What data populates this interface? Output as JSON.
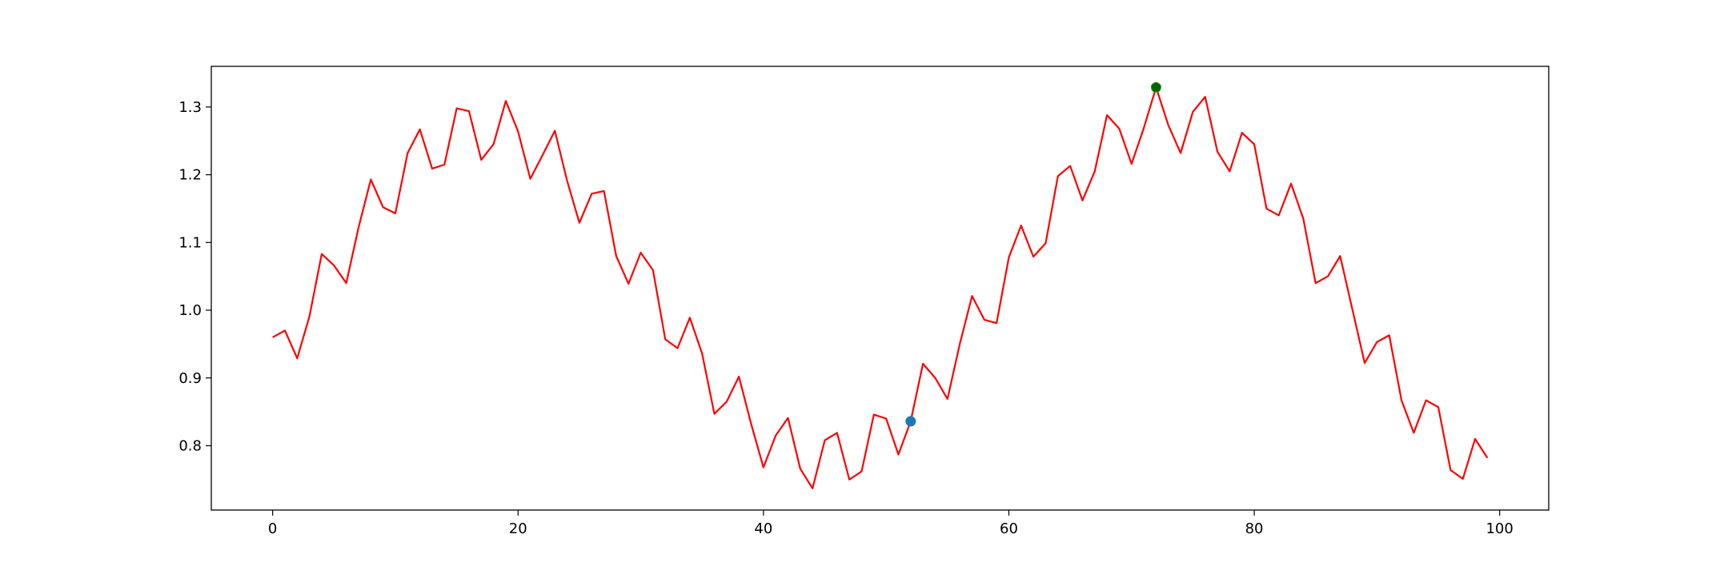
{
  "chart_data": {
    "type": "line",
    "title": "",
    "xlabel": "",
    "ylabel": "",
    "xlim": [
      -5,
      104
    ],
    "ylim": [
      0.705,
      1.36
    ],
    "grid": false,
    "legend": "none",
    "x_ticks": [
      0,
      20,
      40,
      60,
      80,
      100
    ],
    "x_tick_labels": [
      "0",
      "20",
      "40",
      "60",
      "80",
      "100"
    ],
    "y_ticks": [
      0.8,
      0.9,
      1.0,
      1.1,
      1.2,
      1.3
    ],
    "y_tick_labels": [
      "0.8",
      "0.9",
      "1.0",
      "1.1",
      "1.2",
      "1.3"
    ],
    "series": [
      {
        "color": "#ff0000",
        "x": [
          0,
          1,
          2,
          3,
          4,
          5,
          6,
          7,
          8,
          9,
          10,
          11,
          12,
          13,
          14,
          15,
          16,
          17,
          18,
          19,
          20,
          21,
          22,
          23,
          24,
          25,
          26,
          27,
          28,
          29,
          30,
          31,
          32,
          33,
          34,
          35,
          36,
          37,
          38,
          39,
          40,
          41,
          42,
          43,
          44,
          45,
          46,
          47,
          48,
          49,
          50,
          51,
          52,
          53,
          54,
          55,
          56,
          57,
          58,
          59,
          60,
          61,
          62,
          63,
          64,
          65,
          66,
          67,
          68,
          69,
          70,
          71,
          72,
          73,
          74,
          75,
          76,
          77,
          78,
          79,
          80,
          81,
          82,
          83,
          84,
          85,
          86,
          87,
          88,
          89,
          90,
          91,
          92,
          93,
          94,
          95,
          96,
          97,
          98,
          99
        ],
        "values": [
          0.96,
          0.97,
          0.929,
          0.991,
          1.083,
          1.066,
          1.04,
          1.122,
          1.193,
          1.152,
          1.143,
          1.232,
          1.267,
          1.209,
          1.215,
          1.298,
          1.294,
          1.222,
          1.245,
          1.309,
          1.264,
          1.194,
          1.229,
          1.265,
          1.191,
          1.129,
          1.172,
          1.176,
          1.08,
          1.039,
          1.085,
          1.059,
          0.957,
          0.944,
          0.989,
          0.936,
          0.847,
          0.865,
          0.902,
          0.832,
          0.768,
          0.815,
          0.841,
          0.766,
          0.737,
          0.808,
          0.819,
          0.75,
          0.762,
          0.846,
          0.84,
          0.787,
          0.836,
          0.921,
          0.9,
          0.869,
          0.95,
          1.021,
          0.986,
          0.981,
          1.078,
          1.125,
          1.079,
          1.099,
          1.198,
          1.213,
          1.162,
          1.205,
          1.288,
          1.268,
          1.216,
          1.269,
          1.329,
          1.273,
          1.232,
          1.293,
          1.315,
          1.234,
          1.205,
          1.262,
          1.245,
          1.15,
          1.14,
          1.187,
          1.135,
          1.04,
          1.05,
          1.08,
          1.001,
          0.922,
          0.953,
          0.963,
          0.867,
          0.819,
          0.867,
          0.857,
          0.764,
          0.751,
          0.81,
          0.782
        ]
      }
    ],
    "markers": [
      {
        "x": 52,
        "y": 0.836,
        "color": "#1f77b4",
        "shape": "circle"
      },
      {
        "x": 72,
        "y": 1.329,
        "color": "#2ca02c",
        "shape": "circle"
      },
      {
        "x": 72,
        "y": 1.329,
        "color": "#006400",
        "shape": "pentagon"
      }
    ]
  }
}
